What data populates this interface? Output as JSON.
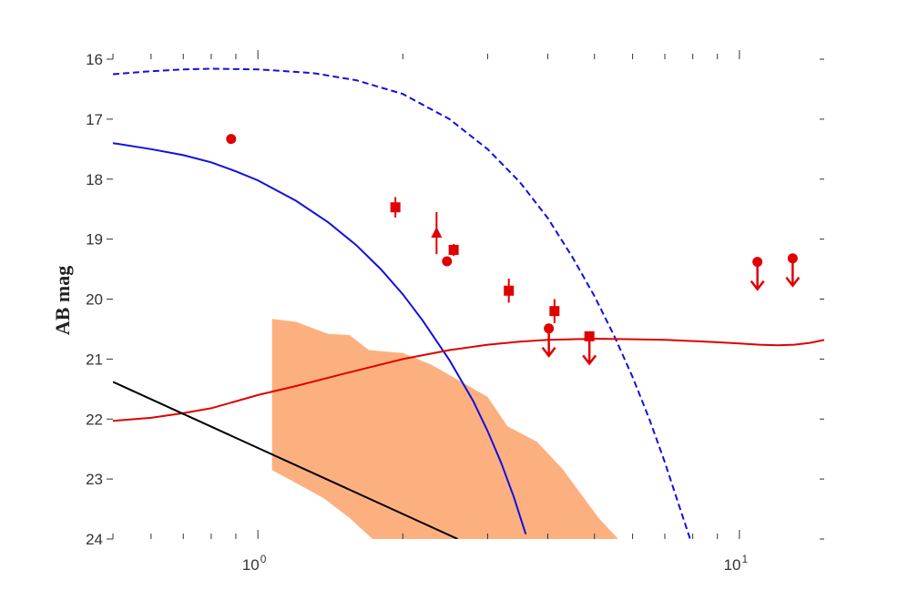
{
  "chart_data": {
    "type": "line",
    "title": "",
    "xlabel": "",
    "ylabel": "AB mag",
    "x_scale": "log",
    "xlim": [
      0.5,
      15
    ],
    "ylim": [
      16,
      24
    ],
    "y_inverted": true,
    "grid": false,
    "legend": "none",
    "x_tick_labels": [
      {
        "value": 1,
        "base": "10",
        "exp": "0"
      },
      {
        "value": 10,
        "base": "10",
        "exp": "1"
      }
    ],
    "y_ticks": [
      16,
      17,
      18,
      19,
      20,
      21,
      22,
      23,
      24
    ],
    "colors": {
      "blue": "#1010e0",
      "red": "#e00000",
      "black": "#000000",
      "shade": "#fdb07f"
    },
    "series": [
      {
        "style": "solid",
        "color": "#1010e0",
        "x": [
          0.5,
          0.6,
          0.7,
          0.8,
          0.9,
          1.0,
          1.2,
          1.4,
          1.6,
          1.8,
          2.0,
          2.2,
          2.5,
          2.8,
          3.0,
          3.2,
          3.4,
          3.6
        ],
        "y": [
          17.4,
          17.5,
          17.6,
          17.72,
          17.87,
          18.02,
          18.36,
          18.72,
          19.1,
          19.5,
          19.92,
          20.36,
          21.02,
          21.7,
          22.2,
          22.73,
          23.3,
          23.92
        ]
      },
      {
        "style": "dashed",
        "color": "#1010e0",
        "x": [
          0.5,
          0.6,
          0.7,
          0.8,
          1.0,
          1.3,
          1.6,
          2.0,
          2.5,
          3.0,
          3.5,
          4.0,
          4.5,
          5.0,
          5.5,
          6.0,
          6.5,
          7.0,
          7.5,
          7.9
        ],
        "y": [
          16.25,
          16.2,
          16.17,
          16.16,
          16.17,
          16.23,
          16.35,
          16.58,
          17.0,
          17.5,
          18.05,
          18.65,
          19.3,
          19.95,
          20.62,
          21.3,
          22.0,
          22.72,
          23.45,
          24.0
        ]
      },
      {
        "style": "solid",
        "color": "#e00000",
        "x": [
          0.5,
          0.6,
          0.7,
          0.8,
          1.0,
          1.2,
          1.5,
          2.0,
          2.5,
          3.0,
          3.5,
          4.0,
          4.5,
          5.0,
          6.0,
          7.0,
          8.0,
          9.0,
          10.0,
          11.0,
          12.0,
          13.0,
          14.0,
          15.0
        ],
        "y": [
          22.03,
          21.98,
          21.9,
          21.82,
          21.6,
          21.45,
          21.25,
          21.0,
          20.85,
          20.76,
          20.71,
          20.68,
          20.67,
          20.66,
          20.67,
          20.68,
          20.7,
          20.72,
          20.74,
          20.76,
          20.77,
          20.76,
          20.73,
          20.68
        ]
      },
      {
        "style": "solid",
        "color": "#000000",
        "x": [
          0.5,
          2.6
        ],
        "y": [
          21.38,
          24.0
        ]
      }
    ],
    "band": {
      "color": "#fdb07f",
      "x": [
        1.07,
        1.07,
        1.2,
        1.4,
        1.55,
        1.7,
        2.0,
        2.3,
        3.0,
        3.3,
        3.8,
        4.3,
        5.1,
        5.6,
        1.73,
        1.55,
        1.37,
        1.17,
        1.07
      ],
      "y": [
        20.33,
        20.33,
        20.38,
        20.58,
        20.6,
        20.85,
        20.9,
        21.1,
        21.63,
        22.12,
        22.38,
        22.84,
        23.65,
        24.0,
        24.0,
        23.65,
        23.32,
        23.02,
        22.85
      ]
    },
    "points": [
      {
        "marker": "circle",
        "x": 0.88,
        "y": 17.33,
        "yerr": 0,
        "limit": false
      },
      {
        "marker": "square",
        "x": 1.93,
        "y": 18.47,
        "yerr": 0.17,
        "limit": false
      },
      {
        "marker": "triangle",
        "x": 2.35,
        "y": 18.9,
        "yerr": 0.35,
        "limit": false
      },
      {
        "marker": "square",
        "x": 2.55,
        "y": 19.18,
        "yerr": 0.1,
        "limit": false
      },
      {
        "marker": "circle",
        "x": 2.47,
        "y": 19.37,
        "yerr": 0,
        "limit": false
      },
      {
        "marker": "square",
        "x": 3.32,
        "y": 19.86,
        "yerr": 0.2,
        "limit": false
      },
      {
        "marker": "square",
        "x": 4.13,
        "y": 20.2,
        "yerr": 0.2,
        "limit": false
      },
      {
        "marker": "circle",
        "x": 4.02,
        "y": 20.49,
        "yerr": 0,
        "limit": true
      },
      {
        "marker": "square",
        "x": 4.88,
        "y": 20.62,
        "yerr": 0,
        "limit": true
      },
      {
        "marker": "circle",
        "x": 10.9,
        "y": 19.38,
        "yerr": 0,
        "limit": true
      },
      {
        "marker": "circle",
        "x": 12.9,
        "y": 19.32,
        "yerr": 0,
        "limit": true
      }
    ]
  }
}
